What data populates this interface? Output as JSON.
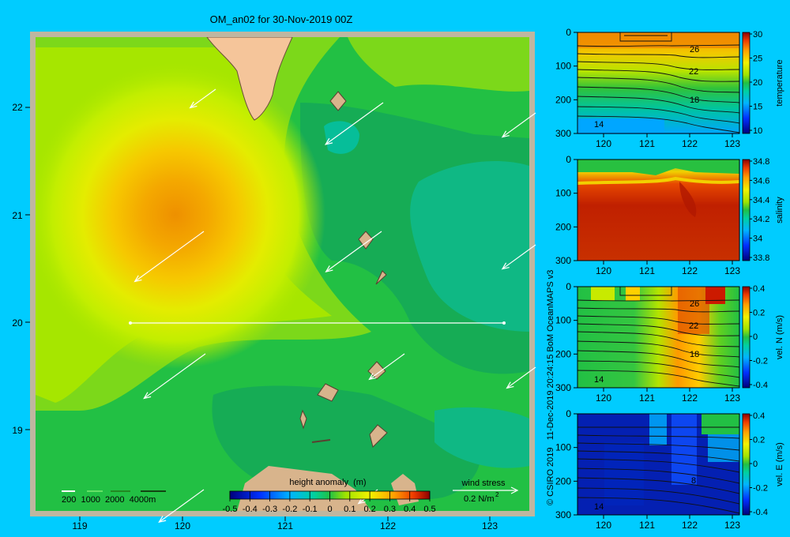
{
  "title": "OM_an02 for 30-Nov-2019 00Z",
  "colors": {
    "background": "#00ccff",
    "land": "#f5c59a",
    "frame": "#bfb6a0",
    "wind": "#ffffff"
  },
  "map": {
    "lon_ticks": [
      "119",
      "120",
      "121",
      "122",
      "123"
    ],
    "lat_ticks": [
      "22",
      "21",
      "20",
      "19"
    ],
    "depth_legend": "200  1000  2000  4000m",
    "colorbar_title": "height anomaly  (m)",
    "colorbar_ticks": [
      "-0.5",
      "-0.4",
      "-0.3",
      "-0.2",
      "-0.1",
      "0",
      "0.1",
      "0.2",
      "0.3",
      "0.4",
      "0.5"
    ],
    "wind_label": "wind stress",
    "wind_scale": "0.2 N/m",
    "wind_scale_sup": "2"
  },
  "credit": "© CSIRO 2019   11-Dec-2019 20:24:15 BoM OceanMAPS v3",
  "panels": [
    {
      "name": "temperature",
      "cbar_ticks": [
        "30",
        "25",
        "20",
        "15",
        "10"
      ],
      "contour_labels": [
        "26",
        "22",
        "18",
        "14"
      ]
    },
    {
      "name": "salinity",
      "cbar_ticks": [
        "34.8",
        "34.6",
        "34.4",
        "34.2",
        "34",
        "33.8"
      ],
      "contour_labels": []
    },
    {
      "name": "vel. N  (m/s)",
      "cbar_ticks": [
        "0.4",
        "0.2",
        "0",
        "-0.2",
        "-0.4"
      ],
      "contour_labels": [
        "26",
        "22",
        "18",
        "14"
      ]
    },
    {
      "name": "vel. E  (m/s)",
      "cbar_ticks": [
        "0.4",
        "0.2",
        "0",
        "-0.2",
        "-0.4"
      ],
      "contour_labels": [
        "8",
        "14"
      ]
    }
  ],
  "section": {
    "x_ticks": [
      "120",
      "121",
      "122",
      "123"
    ],
    "y_ticks": [
      "0",
      "100",
      "200",
      "300"
    ]
  },
  "chart_data": [
    {
      "type": "heatmap",
      "title": "OM_an02 for 30-Nov-2019 00Z",
      "variable": "height anomaly  (m)",
      "x_ticks": [
        119,
        120,
        121,
        122,
        123
      ],
      "y_ticks": [
        22,
        21,
        20,
        19
      ],
      "color_range": [
        -0.5,
        0.5
      ],
      "features": {
        "max_anomaly_center": [
          120.05,
          21.0
        ],
        "max_anomaly_value": 0.3,
        "section_line_lat": 20.0,
        "section_line_lon": [
          119.5,
          123.2
        ]
      }
    },
    {
      "type": "heatmap",
      "variable": "temperature",
      "x_ticks": [
        120,
        121,
        122,
        123
      ],
      "y_ticks": [
        0,
        100,
        200,
        300
      ],
      "color_range": [
        10,
        30
      ],
      "contours": [
        26,
        22,
        18,
        14
      ]
    },
    {
      "type": "heatmap",
      "variable": "salinity",
      "x_ticks": [
        120,
        121,
        122,
        123
      ],
      "y_ticks": [
        0,
        100,
        200,
        300
      ],
      "color_range": [
        33.8,
        34.8
      ]
    },
    {
      "type": "heatmap",
      "variable": "vel. N  (m/s)",
      "x_ticks": [
        120,
        121,
        122,
        123
      ],
      "y_ticks": [
        0,
        100,
        200,
        300
      ],
      "color_range": [
        -0.4,
        0.4
      ]
    },
    {
      "type": "heatmap",
      "variable": "vel. E  (m/s)",
      "x_ticks": [
        120,
        121,
        122,
        123
      ],
      "y_ticks": [
        0,
        100,
        200,
        300
      ],
      "color_range": [
        -0.4,
        0.4
      ]
    }
  ]
}
